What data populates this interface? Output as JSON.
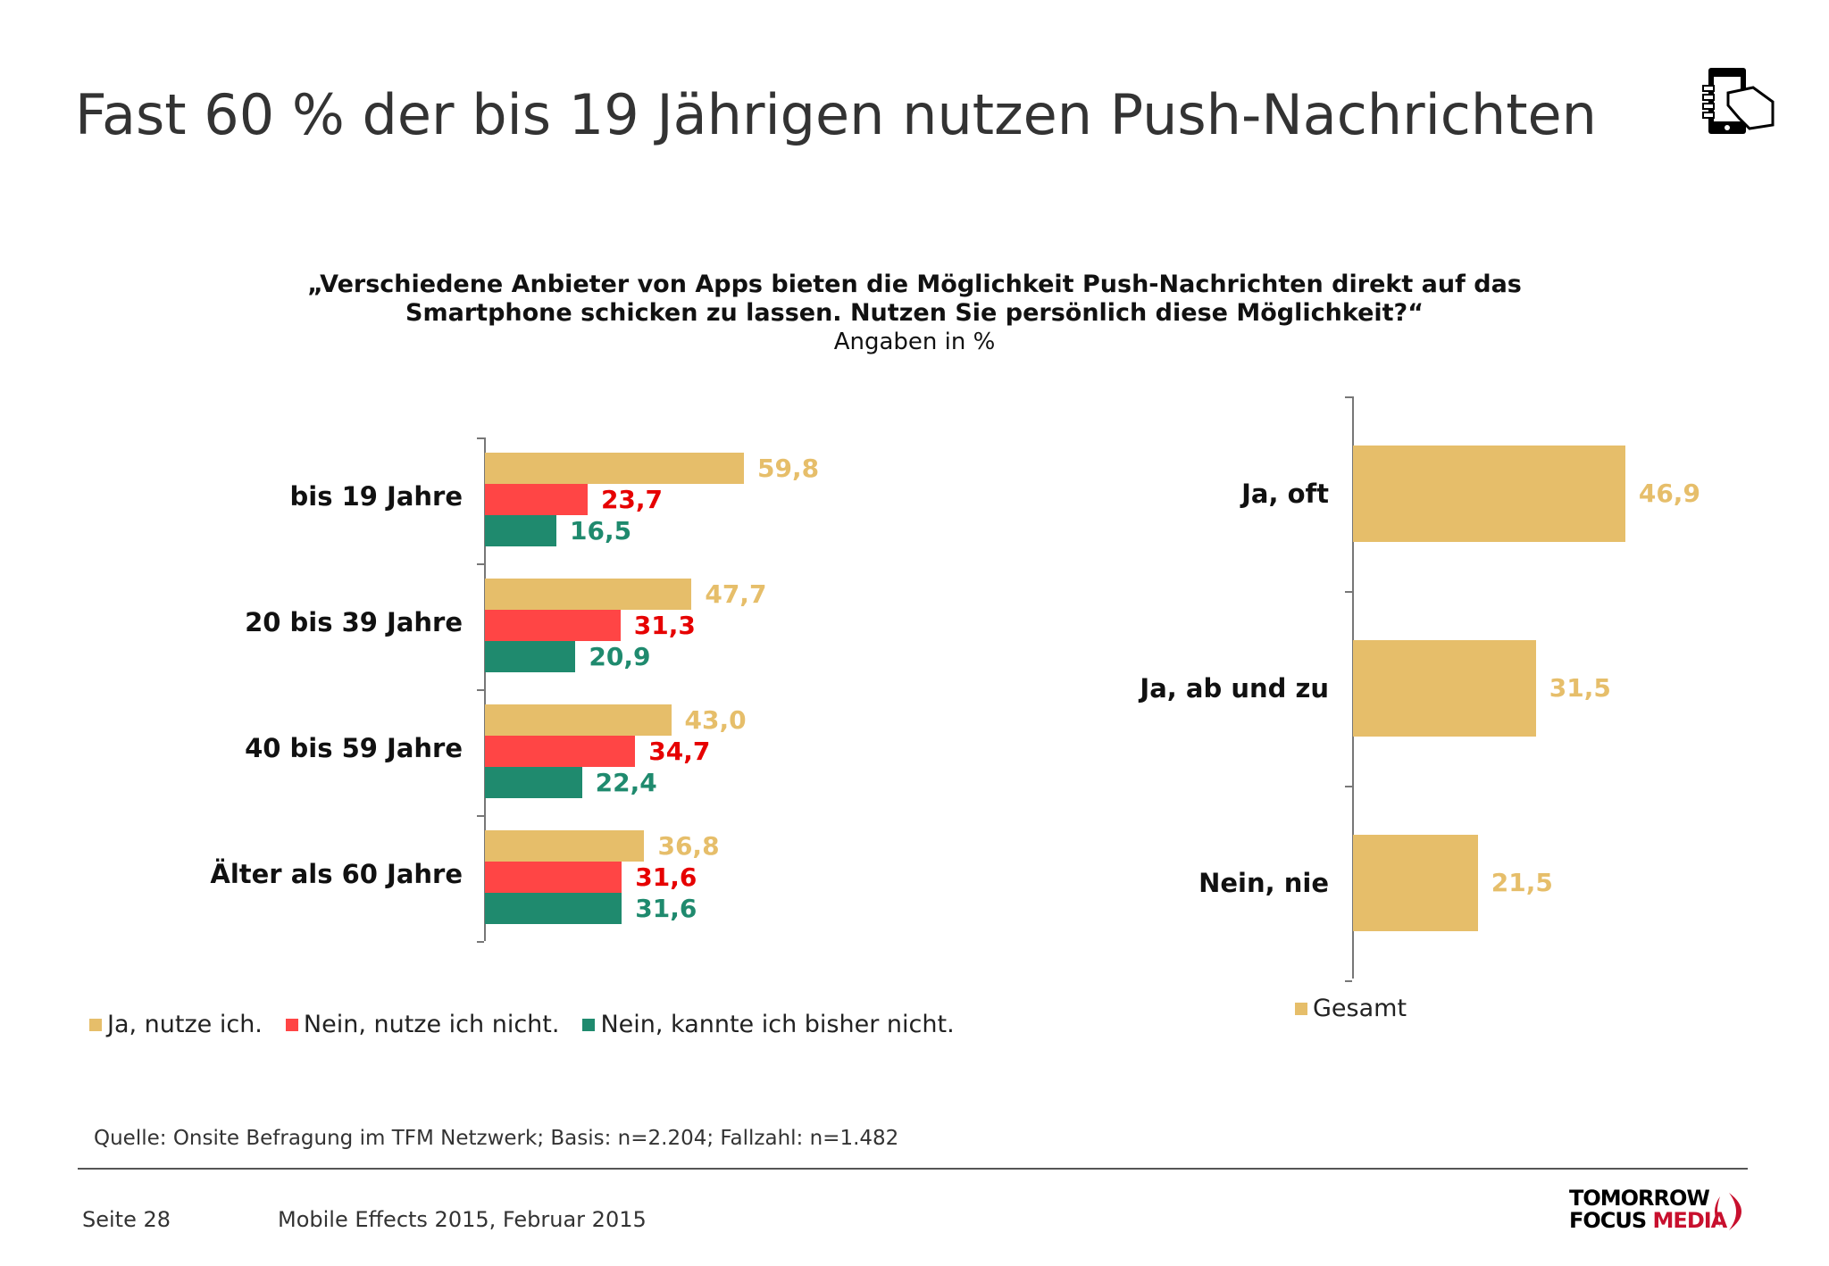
{
  "title": "Fast 60 % der bis 19 Jährigen nutzen Push-Nachrichten",
  "header_icon": "smartphone-hand-icon",
  "question_line1": "„Verschiedene Anbieter von Apps bieten die Möglichkeit Push-Nachrichten direkt auf das",
  "question_line2": "Smartphone schicken zu lassen. Nutzen Sie persönlich diese Möglichkeit?“",
  "unit": "Angaben in %",
  "chart_data": [
    {
      "type": "bar",
      "orientation": "horizontal",
      "categories": [
        "bis 19 Jahre",
        "20 bis 39 Jahre",
        "40 bis 59 Jahre",
        "Älter als 60 Jahre"
      ],
      "series": [
        {
          "name": "Ja, nutze ich.",
          "color": "#E6BE6A",
          "values": [
            59.8,
            47.7,
            43.0,
            36.8
          ],
          "labels": [
            "59,8",
            "47,7",
            "43,0",
            "36,8"
          ]
        },
        {
          "name": "Nein, nutze ich nicht.",
          "color": "#FF4545",
          "label_color": "#E60000",
          "values": [
            23.7,
            31.3,
            34.7,
            31.6
          ],
          "labels": [
            "23,7",
            "31,3",
            "34,7",
            "31,6"
          ]
        },
        {
          "name": "Nein, kannte ich bisher nicht.",
          "color": "#1F8A6E",
          "values": [
            16.5,
            20.9,
            22.4,
            31.6
          ],
          "labels": [
            "16,5",
            "20,9",
            "22,4",
            "31,6"
          ]
        }
      ],
      "legend": "bottom"
    },
    {
      "type": "bar",
      "orientation": "horizontal",
      "categories": [
        "Ja, oft",
        "Ja, ab und zu",
        "Nein, nie"
      ],
      "series": [
        {
          "name": "Gesamt",
          "color": "#E6BE6A",
          "values": [
            46.9,
            31.5,
            21.5
          ],
          "labels": [
            "46,9",
            "31,5",
            "21,5"
          ]
        }
      ],
      "legend": "bottom"
    }
  ],
  "source": "Quelle: Onsite Befragung im TFM Netzwerk; Basis: n=2.204; Fallzahl: n=1.482",
  "footer": {
    "page": "Seite 28",
    "report": "Mobile Effects 2015, Februar 2015"
  },
  "logo": {
    "line1": "TOMORROW",
    "line2a": "FOCUS",
    "line2b": "MEDIA",
    "color": "#C8102E"
  }
}
